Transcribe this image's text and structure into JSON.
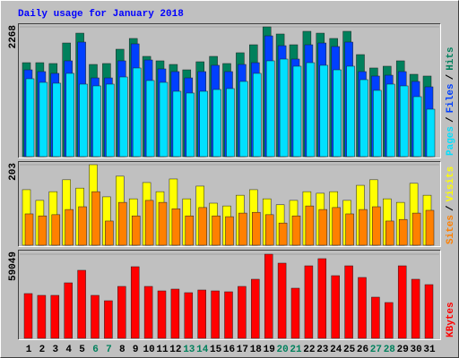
{
  "chart_data": [
    {
      "type": "bar",
      "title": "Daily usage for January 2018",
      "title_color": "#0000ff",
      "legend_separator": "/",
      "ylim": [
        0,
        2268
      ],
      "yticks": [
        2268
      ],
      "series": [
        {
          "name": "Hits",
          "color": "#00805c",
          "values": [
            1642,
            1642,
            1627,
            1986,
            2158,
            1611,
            1627,
            1877,
            2065,
            1752,
            1674,
            1611,
            1517,
            1658,
            1752,
            1627,
            1815,
            1955,
            2268,
            2143,
            1955,
            2190,
            2158,
            2065,
            2190,
            1783,
            1549,
            1580,
            1674,
            1439,
            1408
          ]
        },
        {
          "name": "Files",
          "color": "#0040ff",
          "values": [
            1517,
            1486,
            1455,
            1674,
            2002,
            1376,
            1376,
            1674,
            1971,
            1689,
            1533,
            1486,
            1376,
            1486,
            1596,
            1486,
            1611,
            1642,
            2111,
            1939,
            1705,
            1955,
            1986,
            1924,
            2002,
            1486,
            1408,
            1423,
            1486,
            1314,
            1220
          ]
        },
        {
          "name": "Pages",
          "color": "#00e0ff",
          "values": [
            1361,
            1298,
            1283,
            1455,
            1267,
            1236,
            1267,
            1392,
            1549,
            1330,
            1298,
            1142,
            1111,
            1142,
            1173,
            1189,
            1314,
            1455,
            1674,
            1705,
            1580,
            1642,
            1596,
            1517,
            1580,
            1345,
            1158,
            1267,
            1236,
            1048,
            829
          ]
        }
      ]
    },
    {
      "type": "bar",
      "legend_separator": "/",
      "ylim": [
        0,
        203
      ],
      "yticks": [
        203
      ],
      "series": [
        {
          "name": "Visits",
          "color": "#ffff00",
          "values": [
            140,
            113,
            135,
            165,
            144,
            203,
            122,
            174,
            117,
            158,
            135,
            167,
            117,
            149,
            106,
            99,
            126,
            140,
            117,
            102,
            113,
            135,
            131,
            135,
            113,
            151,
            165,
            117,
            108,
            156,
            126
          ]
        },
        {
          "name": "Sites",
          "color": "#ff8000",
          "values": [
            79,
            74,
            77,
            90,
            97,
            135,
            61,
            108,
            74,
            113,
            108,
            92,
            74,
            95,
            74,
            72,
            81,
            83,
            77,
            56,
            74,
            99,
            90,
            95,
            79,
            90,
            97,
            61,
            65,
            81,
            88
          ]
        }
      ]
    },
    {
      "type": "bar",
      "ylim": [
        0,
        59049
      ],
      "yticks": [
        59049
      ],
      "categories": [
        "1",
        "2",
        "3",
        "4",
        "5",
        "6",
        "7",
        "8",
        "9",
        "10",
        "11",
        "12",
        "13",
        "14",
        "15",
        "16",
        "17",
        "18",
        "19",
        "20",
        "21",
        "22",
        "23",
        "24",
        "25",
        "26",
        "27",
        "28",
        "29",
        "30",
        "31"
      ],
      "category_colors": [
        "#000000",
        "#000000",
        "#000000",
        "#000000",
        "#000000",
        "#00805c",
        "#00805c",
        "#000000",
        "#000000",
        "#000000",
        "#000000",
        "#000000",
        "#00805c",
        "#00805c",
        "#000000",
        "#000000",
        "#000000",
        "#000000",
        "#000000",
        "#00805c",
        "#00805c",
        "#000000",
        "#000000",
        "#000000",
        "#000000",
        "#000000",
        "#00805c",
        "#00805c",
        "#000000",
        "#000000",
        "#000000"
      ],
      "series": [
        {
          "name": "KBytes",
          "color": "#ff0000",
          "values": [
            31410,
            30154,
            30154,
            38949,
            47743,
            30154,
            26384,
            36436,
            50256,
            36436,
            33295,
            34551,
            32038,
            33923,
            33295,
            32667,
            36436,
            41462,
            59049,
            52769,
            35179,
            50885,
            55910,
            43974,
            50885,
            42718,
            28897,
            25128,
            50885,
            41462,
            37692
          ]
        }
      ]
    }
  ]
}
